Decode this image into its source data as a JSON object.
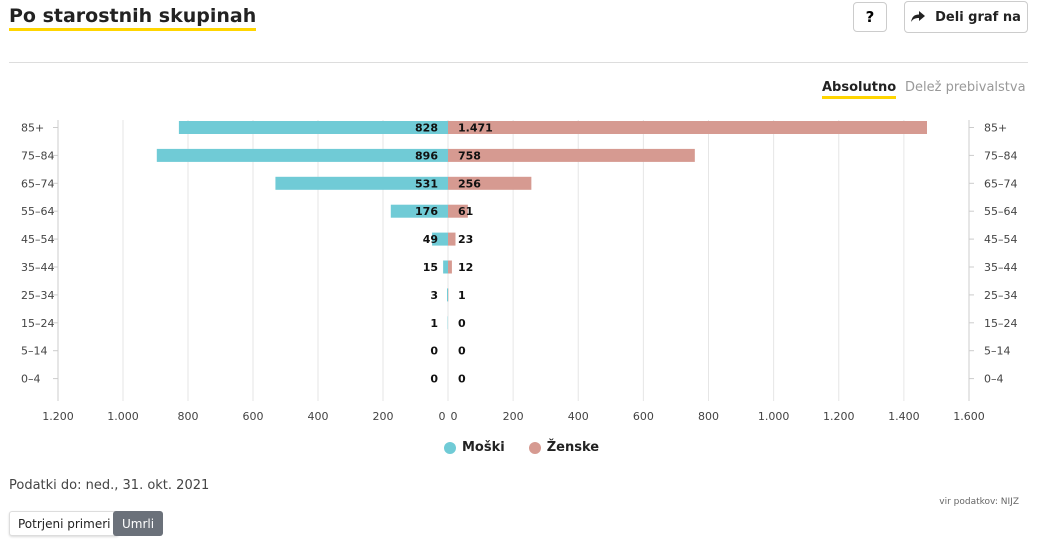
{
  "header": {
    "title": "Po starostnih skupinah",
    "help_label": "?",
    "share_label": "Deli graf na"
  },
  "tabs": {
    "absolute": "Absolutno",
    "share": "Delež prebivalstva"
  },
  "chart_data": {
    "type": "bar",
    "orientation": "horizontal-diverging",
    "categories": [
      "85+",
      "75–84",
      "65–74",
      "55–64",
      "45–54",
      "35–44",
      "25–34",
      "15–24",
      "5–14",
      "0–4"
    ],
    "series": [
      {
        "name": "Moški",
        "values": [
          828,
          896,
          531,
          176,
          49,
          15,
          3,
          1,
          0,
          0
        ],
        "labels": [
          "828",
          "896",
          "531",
          "176",
          "49",
          "15",
          "3",
          "1",
          "0",
          "0"
        ],
        "color": "#70cbd6"
      },
      {
        "name": "Ženske",
        "values": [
          1471,
          758,
          256,
          61,
          23,
          12,
          1,
          0,
          0,
          0
        ],
        "labels": [
          "1.471",
          "758",
          "256",
          "61",
          "23",
          "12",
          "1",
          "0",
          "0",
          "0"
        ],
        "color": "#d69a91"
      }
    ],
    "x_ticks_left": [
      "1.200",
      "1.000",
      "800",
      "600",
      "400",
      "200",
      "0"
    ],
    "x_tick_values_left": [
      1200,
      1000,
      800,
      600,
      400,
      200,
      0
    ],
    "x_ticks_right": [
      "0",
      "200",
      "400",
      "600",
      "800",
      "1.000",
      "1.200",
      "1.400",
      "1.600"
    ],
    "x_tick_values_right": [
      0,
      200,
      400,
      600,
      800,
      1000,
      1200,
      1400,
      1600
    ],
    "xlim_left": [
      0,
      1200
    ],
    "xlim_right": [
      0,
      1600
    ],
    "grid": true,
    "legend_position": "bottom-center"
  },
  "legend": {
    "men": "Moški",
    "women": "Ženske",
    "men_color": "#70cbd6",
    "women_color": "#d69a91"
  },
  "footer": {
    "updated": "Podatki do: ned., 31. okt. 2021",
    "source": "vir podatkov: NIJZ",
    "confirmed_button": "Potrjeni primeri",
    "deceased_button": "Umrli"
  }
}
